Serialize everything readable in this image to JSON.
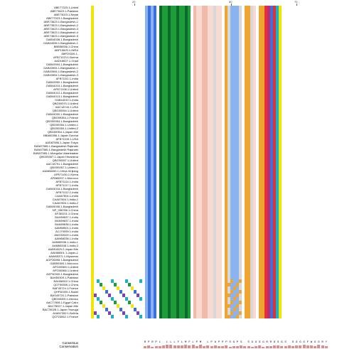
{
  "ruler": {
    "ticks": [
      {
        "col": 19,
        "label": "20"
      },
      {
        "col": 53,
        "label": "50"
      },
      {
        "col": 76,
        "label": "70"
      }
    ]
  },
  "labels": {
    "consensus": "Consensus",
    "conservation": "Conservation"
  },
  "sequences": [
    "ABE77323.1-Unkld",
    "ABE73623.1-Pakistan",
    "ABE73023.1-Nepal",
    "ABE77323.1-Bangladesh",
    "ABE73623.1-Bangladesh-1",
    "ABE73623.1-Bangladesh-2",
    "ABE73623.1-Bangladesh-3",
    "ABE73623.1-Bangladesh-4",
    "ABE73623.1-Bangladesh-5",
    "GAB44036.1-Bangladesh",
    "GAB44036.1-Bangladesh-1",
    "BBB58336.1-China",
    "ABP15829.1-INRA",
    "ABP29326.1-",
    "AFB71123.1-Burma",
    "AAD18627.1-Chad",
    "GAB43994.1-Bangladesh",
    "GAB43994.1-Bangladesh-1",
    "GAB43994.1-Bangladesh-2",
    "GAB43994.1-Bangladesh-3",
    "AFB71111.1-India",
    "GAB43990.1-Bangladesh",
    "GAB44015.1-Bangladesh",
    "AFB71108.1-United",
    "GAB44012.1-Bangladesh",
    "GAB44013.1-Bangladesh",
    "GAB44010.1-India",
    "QBG59370.1-United",
    "AAC18744.1-USA",
    "QBG59354.1-United",
    "GAB44000.1-Bangladesh",
    "QBG59354.1-France",
    "QBG59354.1-Bangladesh",
    "QBG59354.1-United-1",
    "QBG59354.1-United-2",
    "QBG59354.1-Japan Mie",
    "BBA60356.1-Japan Gunma",
    "AFB71109.1-USA",
    "AAD87586.1-Japan Tokyo",
    "BAN57585.1-Bangladesh Rajshahi",
    "BAN57585.1-Bangladesh Rajshahi",
    "BAN57585.1-Mongolia Ulaanbaatar",
    "QBG59357.1-Japan Hiroshima",
    "QBG59357.1-United",
    "AAC18791.1-Bangladesh",
    "QBG59357.1-United-1",
    "AAM68490.1-China Xinjiang",
    "AFB71100.1-Korea",
    "AFB89207.1-Morocco",
    "AFB71114.1-India",
    "AFB71117.1-India",
    "GAB44016.1-Bangladesh",
    "AFB71112.1-India",
    "CAA67804.1-India",
    "CAA67804.1-India-1",
    "CAA67804.1-India-2",
    "GAB44006.1-Bangladesh",
    "NP_056788.1-China",
    "AFJ55211.1-China",
    "BAH59837.1-India",
    "BAN59837.1-India",
    "BAN59838.1-India",
    "AAM68501.1-India",
    "ACJ70099.1-India",
    "AWC69329.1-India",
    "AAM68338.1-India",
    "AAM68338.1-India-1",
    "AAM68338.1-India-2",
    "AAB51825.2-Japan Mie",
    "AAM68501.1-Japan-1",
    "AAW65371.1-Myanmar",
    "AGP26895.1-Bangladesh",
    "GAB59365.1-Morocco",
    "APG59365.1-United",
    "APG59366.1-United",
    "AXP30300.1-Bangladesh",
    "BAH59309.1-Pakistan",
    "BAH58302.1-China",
    "QCF59398.1-China",
    "BAF45724.1-France",
    "QHF50339.1-Brazil",
    "BAS45720.1-Pakistan",
    "QBG59390.1-Mexico",
    "AAC77808.1-Egypt Cairo",
    "BAC78027.1-Japan Mie",
    "BAC78026.1-Japan Tsuruga",
    "AHA57300.1-Bolivia",
    "QCF23842.1-France"
  ],
  "palette": {
    "yellow": "#f2e600",
    "blue": "#3d6fdc",
    "light_blue": "#8ab4ef",
    "green": "#1e9b3a",
    "dark_green": "#0c6b28",
    "salmon": "#f1b9aa",
    "salmon_light": "#f8d9d0",
    "orange": "#f0a530",
    "red": "#e0303a",
    "magenta": "#c22c6e",
    "purple": "#7f3fbf",
    "cyan": "#19b3c9",
    "gray": "#d8d8d8"
  },
  "consensus": "RPRPL LLLFLMFLPM LPAPPPSGPS SGGSGRRSSGS SGGGFWGDRY",
  "conservation_levels": [
    0.6,
    0.8,
    0.5,
    0.7,
    0.6,
    0.9,
    1.0,
    1.0,
    0.9,
    0.9,
    0.8,
    1.0,
    0.9,
    1.0,
    0.7,
    1.0,
    0.6,
    0.8,
    0.7,
    0.9,
    0.7,
    0.6,
    0.8,
    0.5,
    0.7,
    0.6,
    0.8,
    0.6,
    0.7,
    0.5,
    0.6,
    0.8,
    0.5,
    0.7,
    0.6,
    0.8,
    0.9,
    0.7,
    0.6,
    0.8,
    0.7,
    0.9,
    0.8,
    1.0,
    0.9,
    0.8,
    0.7,
    1.0,
    0.9,
    0.6
  ],
  "row_end_number": "46"
}
